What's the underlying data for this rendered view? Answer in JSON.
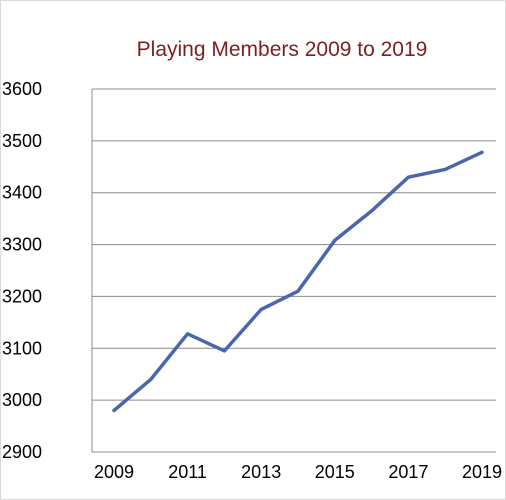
{
  "chart_data": {
    "type": "line",
    "title": "Playing Members 2009 to 2019",
    "xlabel": "",
    "ylabel": "",
    "x": [
      2009,
      2010,
      2011,
      2012,
      2013,
      2014,
      2015,
      2016,
      2017,
      2018,
      2019
    ],
    "x_tick_labels": [
      "2009",
      "2011",
      "2013",
      "2015",
      "2017",
      "2019"
    ],
    "y_tick_labels": [
      "2900",
      "3000",
      "3100",
      "3200",
      "3300",
      "3400",
      "3500",
      "3600"
    ],
    "ylim": [
      2900,
      3600
    ],
    "grid": "horizontal",
    "legend": "none",
    "series": [
      {
        "values": [
          2980,
          3040,
          3128,
          3095,
          3175,
          3210,
          3308,
          3365,
          3430,
          3445,
          3478
        ]
      }
    ],
    "colors": {
      "line": "#4A66AC",
      "title": "#7F1F1F",
      "grid": "#8C8C8C",
      "axis": "#8C8C8C",
      "border": "#D9D9D9"
    }
  }
}
